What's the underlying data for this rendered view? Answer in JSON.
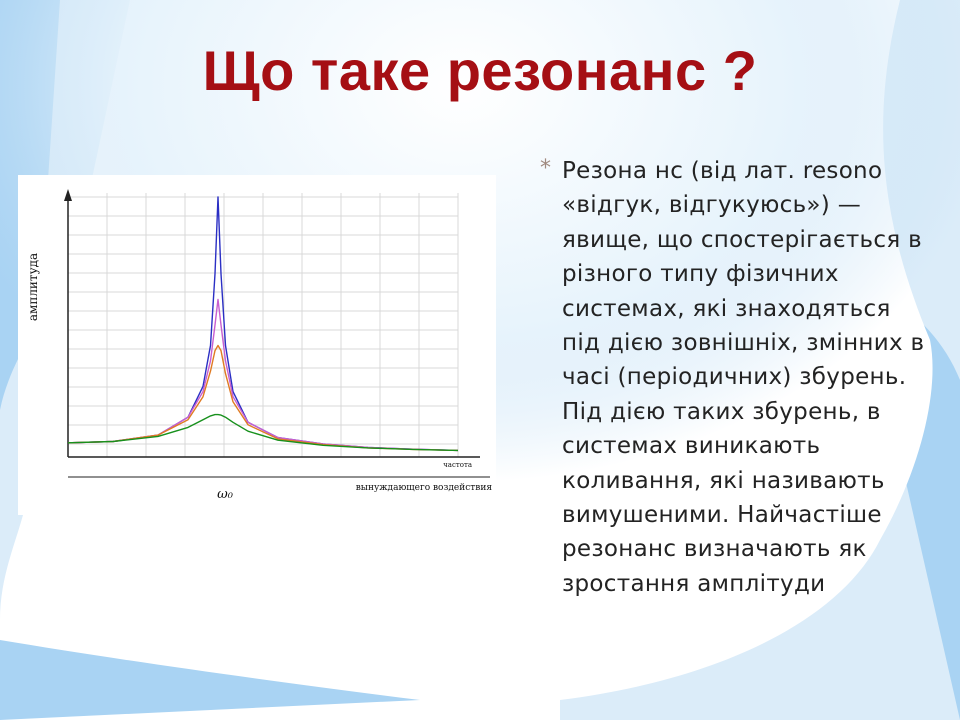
{
  "slide": {
    "title": "Що таке резонанс ?",
    "bullet_marker": "*",
    "bullet_text": "Резона нс (від лат. resono «відгук, відгукуюсь») — явище, що спостерігається в різного типу фізичних системах, які знаходяться під дією зовнішніх, змінних в часі (періодичних) збурень. Під дією таких збурень, в системах виникають коливання, які називають вимушеними. Найчастіше резонанс визначають як зростання амплітуди"
  },
  "colors": {
    "title": "#a50f14",
    "background": "#a9d3f3",
    "series": [
      "#2b2fc4",
      "#c85fd0",
      "#e07a22",
      "#17901c"
    ]
  },
  "chart_data": {
    "type": "line",
    "title": "",
    "ylabel": "амплитуда",
    "xlabel_line1": "частота",
    "xlabel_line2": "вынуждающего воздействия",
    "x_marker_label": "ω₀",
    "x_marker_value": 1.0,
    "xlim": [
      0,
      2.6
    ],
    "ylim": [
      0,
      1.0
    ],
    "grid": true,
    "legend": "none",
    "series": [
      {
        "x": [
          0,
          0.3,
          0.6,
          0.8,
          0.9,
          0.95,
          0.98,
          1.0,
          1.02,
          1.05,
          1.1,
          1.2,
          1.4,
          1.7,
          2.0,
          2.3,
          2.6
        ],
        "values": [
          0.04,
          0.045,
          0.07,
          0.14,
          0.26,
          0.42,
          0.7,
          1.0,
          0.7,
          0.42,
          0.24,
          0.12,
          0.06,
          0.035,
          0.022,
          0.015,
          0.01
        ]
      },
      {
        "x": [
          0,
          0.3,
          0.6,
          0.8,
          0.9,
          0.95,
          0.98,
          1.0,
          1.02,
          1.05,
          1.1,
          1.2,
          1.4,
          1.7,
          2.0,
          2.3,
          2.6
        ],
        "values": [
          0.04,
          0.045,
          0.07,
          0.14,
          0.24,
          0.36,
          0.5,
          0.6,
          0.5,
          0.36,
          0.22,
          0.12,
          0.06,
          0.035,
          0.022,
          0.015,
          0.01
        ]
      },
      {
        "x": [
          0,
          0.3,
          0.6,
          0.8,
          0.9,
          0.95,
          0.98,
          1.0,
          1.02,
          1.05,
          1.1,
          1.2,
          1.4,
          1.7,
          2.0,
          2.3,
          2.6
        ],
        "values": [
          0.04,
          0.045,
          0.07,
          0.13,
          0.22,
          0.32,
          0.4,
          0.42,
          0.4,
          0.31,
          0.2,
          0.11,
          0.055,
          0.033,
          0.02,
          0.014,
          0.01
        ]
      },
      {
        "x": [
          0,
          0.3,
          0.6,
          0.8,
          0.9,
          0.95,
          0.98,
          1.0,
          1.02,
          1.05,
          1.1,
          1.2,
          1.4,
          1.7,
          2.0,
          2.3,
          2.6
        ],
        "values": [
          0.04,
          0.045,
          0.065,
          0.1,
          0.13,
          0.145,
          0.15,
          0.15,
          0.148,
          0.14,
          0.12,
          0.085,
          0.05,
          0.03,
          0.02,
          0.014,
          0.01
        ]
      }
    ]
  }
}
